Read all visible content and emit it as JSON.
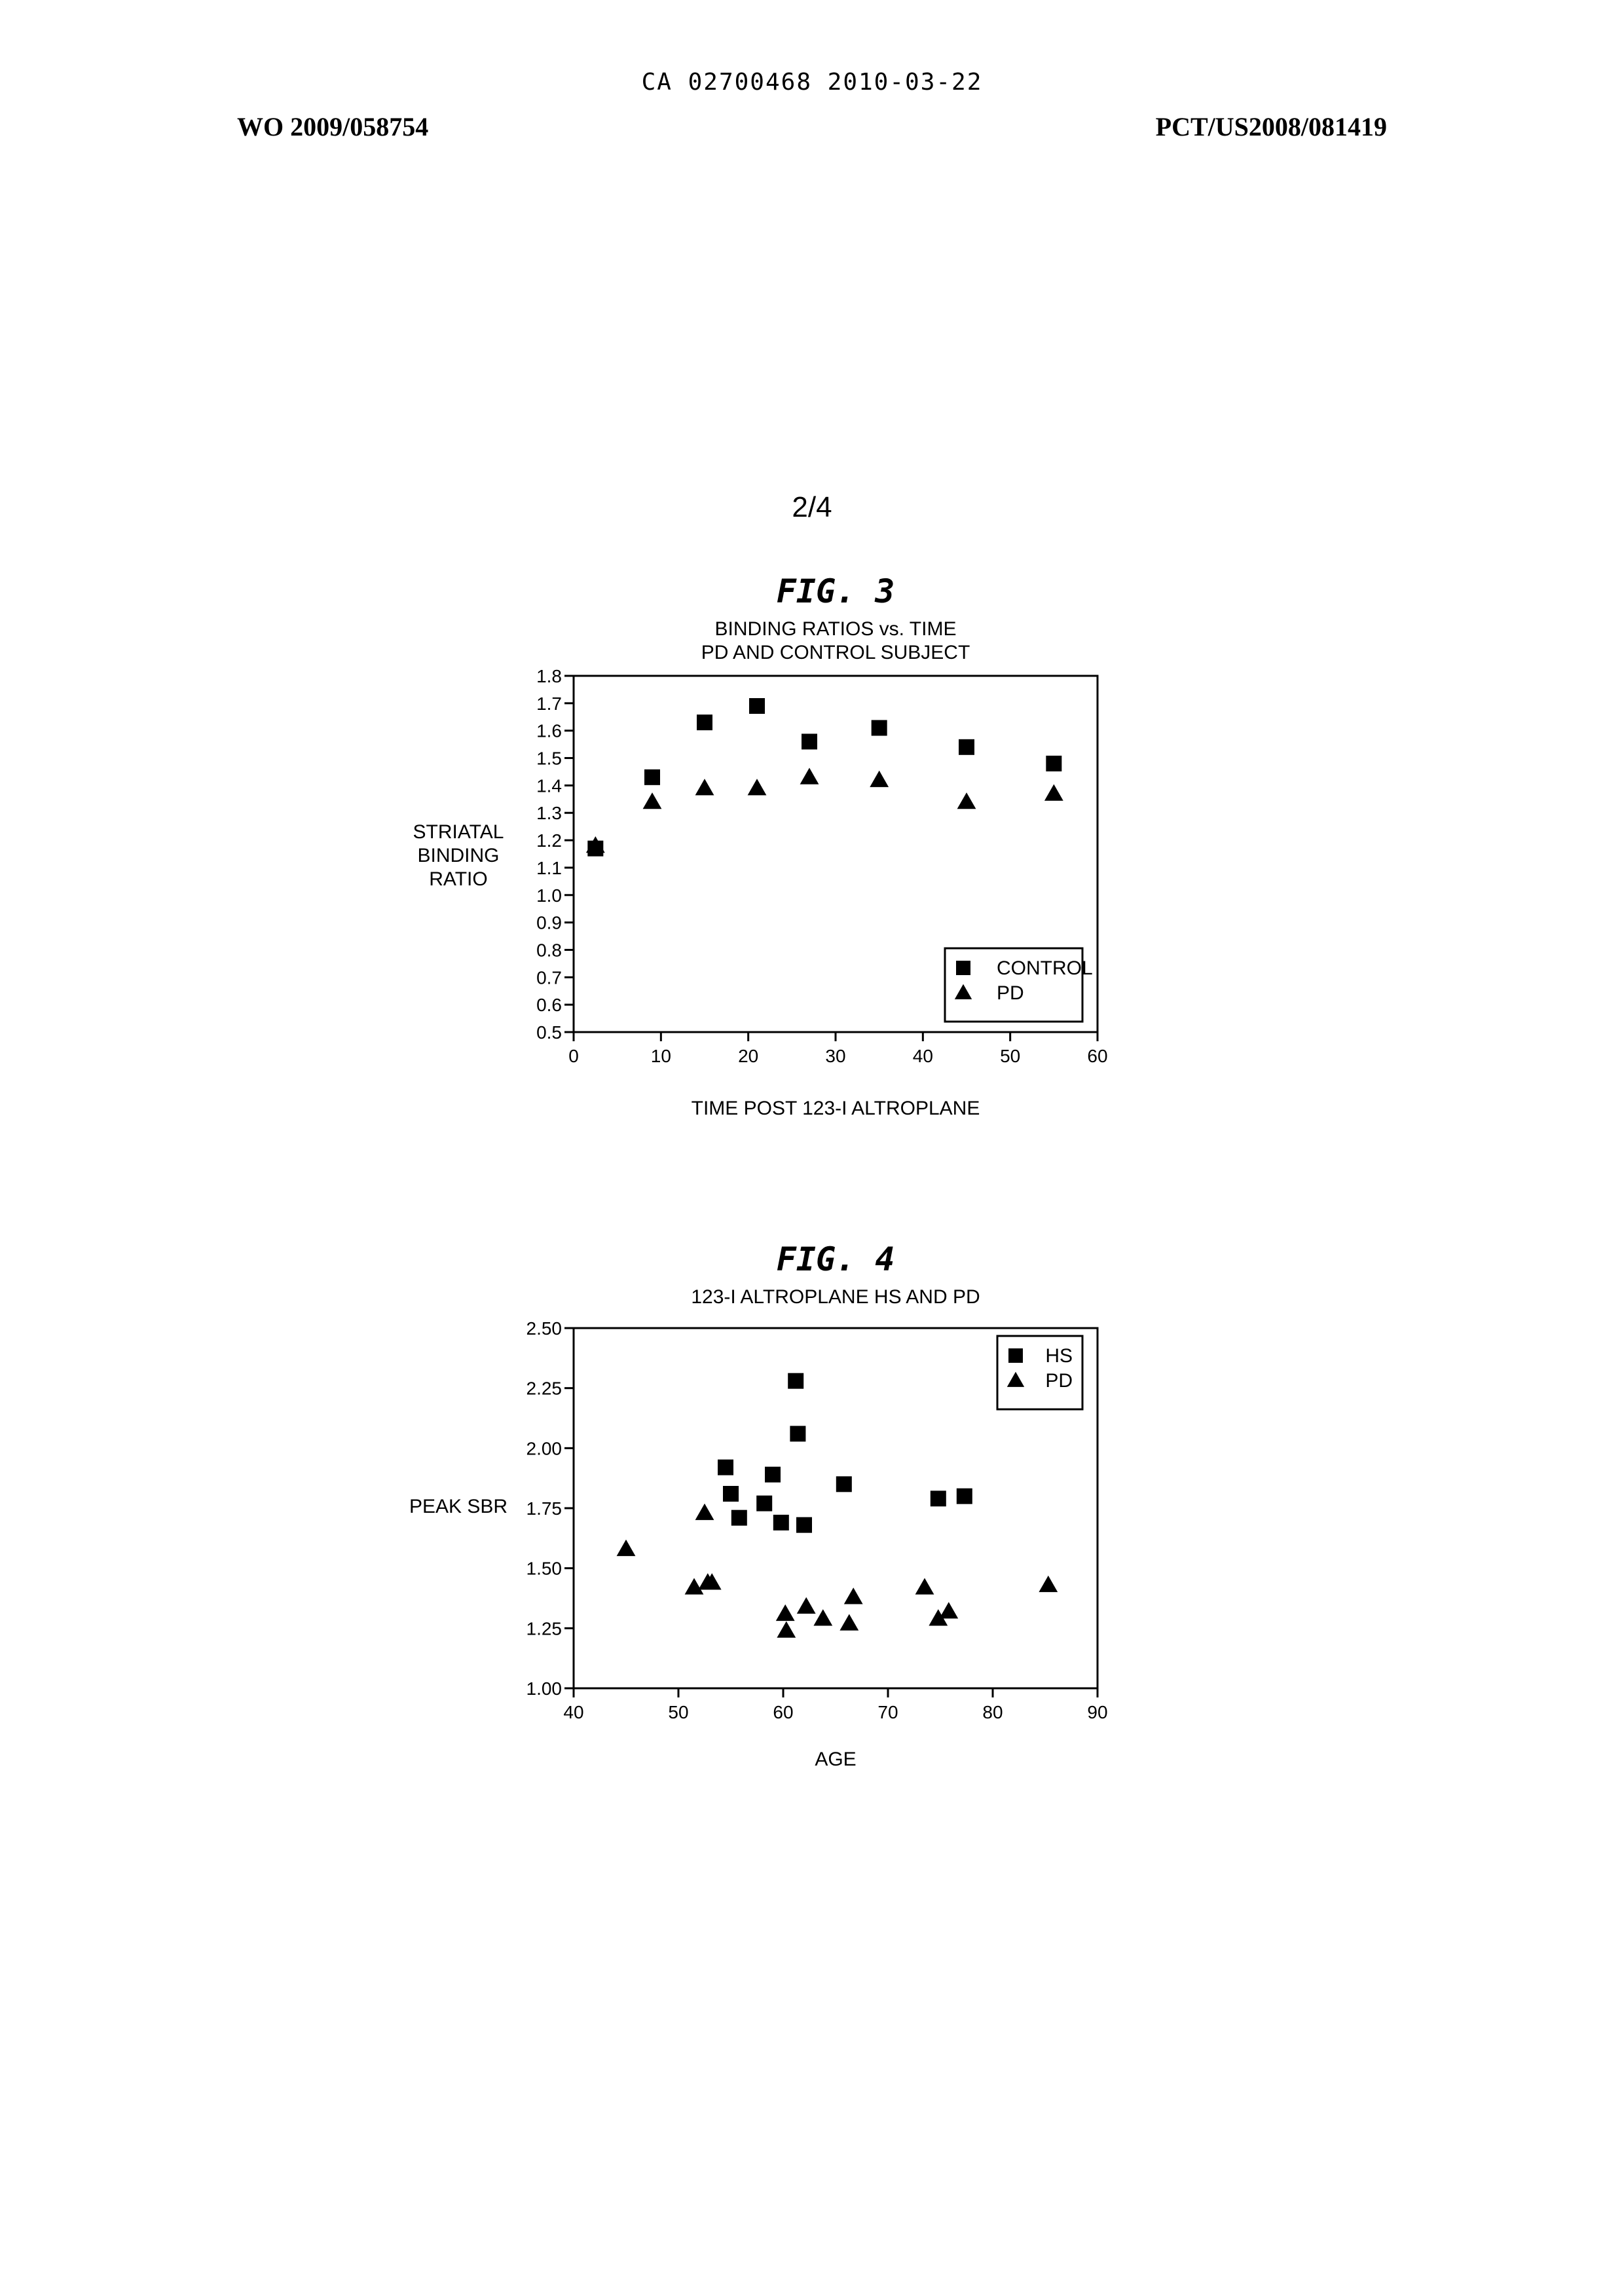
{
  "header": {
    "ca_line": "CA 02700468 2010-03-22",
    "left": "WO 2009/058754",
    "right": "PCT/US2008/081419"
  },
  "page_number": "2/4",
  "chart_data": [
    {
      "type": "scatter",
      "figure_label": "FIG. 3",
      "title": "BINDING RATIOS vs. TIME",
      "subtitle": "PD AND CONTROL SUBJECT",
      "xlabel": "TIME POST 123-I ALTROPLANE",
      "ylabel": [
        "STRIATAL",
        "BINDING",
        "RATIO"
      ],
      "xlim": [
        0,
        60
      ],
      "ylim": [
        0.5,
        1.8
      ],
      "xticks": [
        0,
        10,
        20,
        30,
        40,
        50,
        60
      ],
      "xtick_labels": [
        "0",
        "10",
        "20",
        "30",
        "40",
        "50",
        "60"
      ],
      "yticks": [
        0.5,
        0.6,
        0.7,
        0.8,
        0.9,
        1.0,
        1.1,
        1.2,
        1.3,
        1.4,
        1.5,
        1.6,
        1.7,
        1.8
      ],
      "ytick_labels": [
        "0.5",
        "0.6",
        "0.7",
        "0.8",
        "0.9",
        "1.0",
        "1.1",
        "1.2",
        "1.3",
        "1.4",
        "1.5",
        "1.6",
        "1.7",
        "1.8"
      ],
      "grid": false,
      "legend_position": "bottom-right",
      "series": [
        {
          "name": "CONTROL",
          "marker": "square",
          "x": [
            2.5,
            9,
            15,
            21,
            27,
            35,
            45,
            55
          ],
          "y": [
            1.17,
            1.43,
            1.63,
            1.69,
            1.56,
            1.61,
            1.54,
            1.48
          ]
        },
        {
          "name": "PD",
          "marker": "triangle",
          "x": [
            2.5,
            9,
            15,
            21,
            27,
            35,
            45,
            55
          ],
          "y": [
            1.18,
            1.34,
            1.39,
            1.39,
            1.43,
            1.42,
            1.34,
            1.37
          ]
        }
      ]
    },
    {
      "type": "scatter",
      "figure_label": "FIG. 4",
      "title": "123-I ALTROPLANE HS AND PD",
      "xlabel": "AGE",
      "ylabel": [
        "PEAK SBR"
      ],
      "xlim": [
        40,
        90
      ],
      "ylim": [
        1.0,
        2.5
      ],
      "xticks": [
        40,
        50,
        60,
        70,
        80,
        90
      ],
      "xtick_labels": [
        "40",
        "50",
        "60",
        "70",
        "80",
        "90"
      ],
      "yticks": [
        1.0,
        1.25,
        1.5,
        1.75,
        2.0,
        2.25,
        2.5
      ],
      "ytick_labels": [
        "1.00",
        "1.25",
        "1.50",
        "1.75",
        "2.00",
        "2.25",
        "2.50"
      ],
      "grid": false,
      "legend_position": "top-right",
      "series": [
        {
          "name": "HS",
          "marker": "square",
          "x": [
            54.5,
            55,
            55.8,
            58.2,
            59,
            59.8,
            61.2,
            61.4,
            62,
            65.8,
            74.8,
            77.3
          ],
          "y": [
            1.92,
            1.81,
            1.71,
            1.77,
            1.89,
            1.69,
            2.28,
            2.06,
            1.68,
            1.85,
            1.79,
            1.8
          ]
        },
        {
          "name": "PD",
          "marker": "triangle",
          "x": [
            45,
            51.5,
            52.5,
            52.8,
            53.2,
            60.2,
            60.3,
            62.2,
            63.8,
            66.3,
            66.7,
            73.5,
            74.8,
            75.8,
            85.3
          ],
          "y": [
            1.58,
            1.42,
            1.73,
            1.44,
            1.44,
            1.31,
            1.24,
            1.34,
            1.29,
            1.27,
            1.38,
            1.42,
            1.29,
            1.32,
            1.43
          ]
        }
      ]
    }
  ]
}
